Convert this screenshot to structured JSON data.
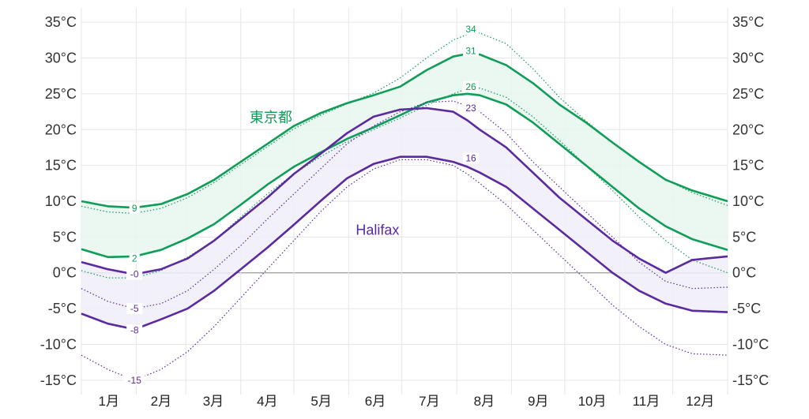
{
  "chart_data": {
    "type": "area",
    "title": "",
    "xlabel": "",
    "ylabel": "",
    "ylim": [
      -17,
      37
    ],
    "y_ticks": [
      35,
      30,
      25,
      20,
      15,
      10,
      5,
      0,
      -5,
      -10,
      -15
    ],
    "y_tick_unit": "°C",
    "month_labels": [
      "1月",
      "2月",
      "3月",
      "4月",
      "5月",
      "6月",
      "7月",
      "8月",
      "9月",
      "10月",
      "11月",
      "12月"
    ],
    "x_domain": [
      0,
      365
    ],
    "grid": true,
    "zero_line": true,
    "series": [
      {
        "name": "東京都",
        "color": "#0f9d58",
        "band_fill": "#e8f6ee",
        "x": [
          0,
          15,
          30,
          45,
          60,
          75,
          90,
          105,
          120,
          135,
          150,
          165,
          180,
          195,
          210,
          218,
          225,
          240,
          255,
          270,
          285,
          300,
          315,
          330,
          345,
          365
        ],
        "high": [
          10,
          9.3,
          9.1,
          9.6,
          11,
          13,
          15.5,
          18,
          20.5,
          22.3,
          23.7,
          24.8,
          26,
          28.3,
          30.2,
          30.6,
          30.5,
          29,
          26.5,
          23.5,
          21,
          18.2,
          15.5,
          13,
          11.5,
          10
        ],
        "low": [
          3.3,
          2.2,
          2.3,
          3.2,
          4.8,
          6.8,
          9.5,
          12.3,
          14.8,
          16.8,
          18.7,
          20.3,
          22,
          23.8,
          24.8,
          25,
          24.8,
          23.5,
          21,
          18,
          15,
          12,
          9,
          6.5,
          4.7,
          3.2
        ],
        "p90": [
          9.3,
          8.5,
          8.3,
          9,
          10.5,
          12.6,
          15.1,
          17.6,
          20.1,
          22,
          23.6,
          25.1,
          27.2,
          30,
          32.5,
          33.3,
          33.5,
          32,
          28.5,
          24.5,
          21.2,
          18.2,
          15.5,
          13,
          11.2,
          9.4
        ],
        "p10": [
          0.3,
          -0.7,
          -0.7,
          0.3,
          2.2,
          4.5,
          7.8,
          11,
          13.8,
          16.2,
          18.3,
          20,
          21.6,
          23.4,
          25,
          25.7,
          25.8,
          24.5,
          21.8,
          18.5,
          15,
          11.5,
          7.8,
          4.5,
          1.8,
          0
        ],
        "labels": [
          {
            "x": 30,
            "value": 9,
            "text": "9",
            "which": "high"
          },
          {
            "x": 30,
            "value": 2,
            "text": "2",
            "which": "low"
          },
          {
            "x": 220,
            "value": 34,
            "text": "34",
            "which": "p90"
          },
          {
            "x": 220,
            "value": 31,
            "text": "31",
            "which": "high"
          },
          {
            "x": 220,
            "value": 26,
            "text": "26",
            "which": "p10"
          }
        ],
        "name_anchor": {
          "x": 95,
          "value": 21
        }
      },
      {
        "name": "Halifax",
        "color": "#5b2a9e",
        "band_fill": "#f0eef9",
        "x": [
          0,
          15,
          30,
          45,
          60,
          75,
          90,
          105,
          120,
          135,
          150,
          165,
          180,
          195,
          210,
          218,
          225,
          240,
          255,
          270,
          285,
          300,
          315,
          330,
          345,
          365
        ],
        "high": [
          1.5,
          0.5,
          -0.2,
          0.5,
          2,
          4.5,
          7.5,
          10.5,
          13.8,
          16.6,
          19.5,
          21.8,
          22.8,
          23,
          22.5,
          21.3,
          20,
          17.5,
          14,
          10.5,
          7.5,
          4.5,
          2,
          0,
          1.8,
          2.3
        ],
        "low": [
          -5.7,
          -7.1,
          -7.9,
          -6.5,
          -5,
          -2.5,
          0.5,
          3.5,
          6.7,
          10,
          13.2,
          15.2,
          16.2,
          16.2,
          15.5,
          14.8,
          14,
          12,
          9,
          6,
          3,
          0,
          -2.5,
          -4.3,
          -5.3,
          -5.5
        ],
        "p90": [
          -2.2,
          -4,
          -5,
          -4.3,
          -2.5,
          0.5,
          3.8,
          7.5,
          11,
          14.5,
          18,
          20.5,
          22.5,
          23.8,
          24,
          23.3,
          22.5,
          19.5,
          15.5,
          12,
          8.5,
          5,
          1.5,
          -1.2,
          -2.2,
          -2
        ],
        "p10": [
          -11.5,
          -13.5,
          -15,
          -13.5,
          -11,
          -7.5,
          -3.5,
          0.5,
          4.5,
          8.5,
          12,
          14.5,
          15.8,
          15.8,
          15,
          13.8,
          12.5,
          9.5,
          6,
          2.5,
          -1,
          -4.5,
          -7.5,
          -10,
          -11.3,
          -11.5
        ],
        "labels": [
          {
            "x": 30,
            "value": -0.2,
            "text": "-0",
            "which": "high"
          },
          {
            "x": 30,
            "value": -5,
            "text": "-5",
            "which": "p90"
          },
          {
            "x": 30,
            "value": -8,
            "text": "-8",
            "which": "low"
          },
          {
            "x": 30,
            "value": -15,
            "text": "-15",
            "which": "p10"
          },
          {
            "x": 220,
            "value": 23,
            "text": "23",
            "which": "high"
          },
          {
            "x": 220,
            "value": 16,
            "text": "16",
            "which": "low"
          }
        ],
        "name_anchor": {
          "x": 155,
          "value": 5.3
        }
      }
    ]
  }
}
